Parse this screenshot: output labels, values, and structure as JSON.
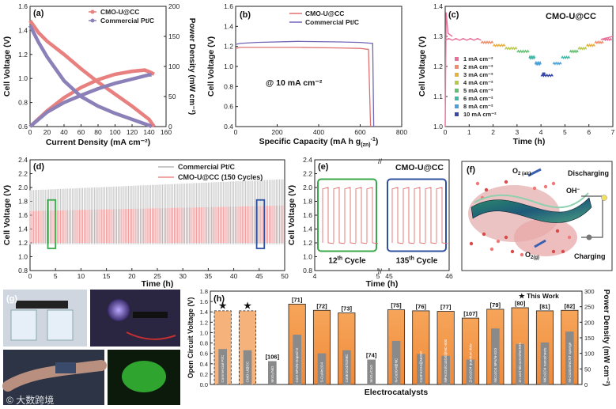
{
  "chart_data": [
    {
      "panel": "(a)",
      "type": "line",
      "xlabel": "Current Density (mA cm⁻²)",
      "ylabel": "Cell Voltage (V)",
      "ylabel2": "Power Density (mW cm⁻²)",
      "xlim": [
        0,
        160
      ],
      "ylim": [
        0.6,
        1.6
      ],
      "y2lim": [
        0,
        200
      ],
      "xticks": [
        "0",
        "20",
        "40",
        "60",
        "80",
        "100",
        "120",
        "140",
        "160"
      ],
      "yticks": [
        "0.6",
        "0.8",
        "1.0",
        "1.2",
        "1.4",
        "1.6"
      ],
      "y2ticks": [
        "0",
        "50",
        "100",
        "150",
        "200"
      ],
      "series": [
        {
          "name": "CMO-U@CC",
          "color": "#e8807f",
          "voltage": [
            [
              0,
              1.48
            ],
            [
              10,
              1.38
            ],
            [
              20,
              1.31
            ],
            [
              40,
              1.2
            ],
            [
              60,
              1.08
            ],
            [
              80,
              0.97
            ],
            [
              100,
              0.87
            ],
            [
              120,
              0.77
            ],
            [
              140,
              0.66
            ],
            [
              146,
              0.6
            ]
          ],
          "power": [
            [
              0,
              0
            ],
            [
              20,
              26
            ],
            [
              40,
              48
            ],
            [
              60,
              65
            ],
            [
              80,
              78
            ],
            [
              100,
              87
            ],
            [
              120,
              92
            ],
            [
              135,
              94
            ],
            [
              142,
              90
            ],
            [
              146,
              87
            ]
          ]
        },
        {
          "name": "Commercial Pt/C",
          "color": "#8b80b8",
          "voltage": [
            [
              0,
              1.44
            ],
            [
              10,
              1.3
            ],
            [
              20,
              1.18
            ],
            [
              40,
              0.98
            ],
            [
              60,
              0.85
            ],
            [
              80,
              0.77
            ],
            [
              100,
              0.71
            ],
            [
              120,
              0.66
            ],
            [
              140,
              0.61
            ],
            [
              143,
              0.6
            ]
          ],
          "power": [
            [
              0,
              0
            ],
            [
              20,
              24
            ],
            [
              40,
              40
            ],
            [
              60,
              52
            ],
            [
              80,
              63
            ],
            [
              100,
              72
            ],
            [
              120,
              79
            ],
            [
              140,
              86
            ],
            [
              143,
              86
            ]
          ]
        }
      ]
    },
    {
      "panel": "(b)",
      "type": "line",
      "xlabel": "Specific Capacity (mA h g",
      "xlabel_sub": "(zn)",
      "xlabel_sup": "-1",
      "xlabel_close": ")",
      "ylabel": "Cell Voltage (V)",
      "annotation": "@ 10 mA cm⁻²",
      "xlim": [
        0,
        800
      ],
      "ylim": [
        0.4,
        1.6
      ],
      "xticks": [
        "0",
        "200",
        "400",
        "600",
        "800"
      ],
      "yticks": [
        "0.4",
        "0.6",
        "0.8",
        "1.0",
        "1.2",
        "1.4",
        "1.6"
      ],
      "series": [
        {
          "name": "CMO-U@CC",
          "color": "#e07070",
          "x": [
            0,
            20,
            100,
            300,
            500,
            600,
            640,
            650
          ],
          "y": [
            1.18,
            1.19,
            1.19,
            1.19,
            1.185,
            1.18,
            1.17,
            0.4
          ]
        },
        {
          "name": "Commercial Pt/C",
          "color": "#7066b8",
          "x": [
            0,
            20,
            100,
            300,
            500,
            600,
            660,
            665
          ],
          "y": [
            1.22,
            1.23,
            1.24,
            1.25,
            1.245,
            1.24,
            1.23,
            0.4
          ]
        }
      ]
    },
    {
      "panel": "(c)",
      "type": "line",
      "title": "CMO-U@CC",
      "xlabel": "Time (h)",
      "ylabel": "Cell Voltage (V)",
      "xlim": [
        0,
        7
      ],
      "ylim": [
        1.0,
        1.4
      ],
      "xticks": [
        "0",
        "1",
        "2",
        "3",
        "4",
        "5",
        "6",
        "7"
      ],
      "yticks": [
        "1.0",
        "1.1",
        "1.2",
        "1.3",
        "1.4"
      ],
      "steps": [
        {
          "label": "1 mA cm⁻²",
          "color": "#ea6f9a",
          "t0": 0,
          "t1": 1.5,
          "v": 1.29
        },
        {
          "label": "2 mA cm⁻²",
          "color": "#f08c6a",
          "t0": 1.5,
          "t1": 2.0,
          "v": 1.28
        },
        {
          "label": "3 mA cm⁻²",
          "color": "#e8b040",
          "t0": 2.0,
          "t1": 2.5,
          "v": 1.27
        },
        {
          "label": "4 mA cm⁻²",
          "color": "#b8c848",
          "t0": 2.5,
          "t1": 3.0,
          "v": 1.26
        },
        {
          "label": "5 mA cm⁻²",
          "color": "#60c070",
          "t0": 3.0,
          "t1": 3.5,
          "v": 1.25
        },
        {
          "label": "6 mA cm⁻²",
          "color": "#40b8a8",
          "t0": 3.5,
          "t1": 3.75,
          "v": 1.23
        },
        {
          "label": "8 mA cm⁻²",
          "color": "#4aa0d8",
          "t0": 3.75,
          "t1": 4.0,
          "v": 1.21
        },
        {
          "label": "10 mA cm⁻²",
          "color": "#3848a8",
          "t0": 4.0,
          "t1": 4.5,
          "v": 1.17
        }
      ]
    },
    {
      "panel": "(d)",
      "type": "line",
      "xlabel": "Time (h)",
      "ylabel": "Cell Voltage (V)",
      "xlim": [
        0,
        50
      ],
      "ylim": [
        0.8,
        2.4
      ],
      "xticks": [
        "0",
        "5",
        "10",
        "15",
        "20",
        "25",
        "30",
        "35",
        "40",
        "45",
        "50"
      ],
      "yticks": [
        "0.8",
        "1.0",
        "1.2",
        "1.4",
        "1.6",
        "1.8",
        "2.0",
        "2.2",
        "2.4"
      ],
      "series": [
        {
          "name": "Commercial Pt/C",
          "color": "#c8c8c8",
          "discharge_v": 1.18,
          "charge_v_start": 1.96,
          "charge_v_end": 2.12,
          "t_end": 50
        },
        {
          "name": "CMO-U@CC (150 Cycles)",
          "color": "#f0a0a0",
          "discharge_v": 1.2,
          "charge_v_start": 1.66,
          "charge_v_end": 1.74,
          "t_end": 50
        }
      ],
      "highlights": [
        {
          "t0": 3.5,
          "t1": 5.0,
          "color": "#3aa84a"
        },
        {
          "t0": 44.5,
          "t1": 46.0,
          "color": "#3050a0"
        }
      ]
    },
    {
      "panel": "(e)",
      "type": "line",
      "title": "CMO-U@CC",
      "xlabel": "Time (h)",
      "ylabel": "Cell Voltage (V)",
      "ylim": [
        0.8,
        2.4
      ],
      "xticks": [
        "4",
        "5",
        "45",
        "46"
      ],
      "yticks": [
        "0.8",
        "1.0",
        "1.2",
        "1.4",
        "1.6",
        "1.8",
        "2.0",
        "2.2",
        "2.4"
      ],
      "insets": [
        {
          "label": "12",
          "sup": "th",
          "suffix": " Cycle",
          "color": "#3aa84a"
        },
        {
          "label": "135",
          "sup": "th",
          "suffix": " Cycle",
          "color": "#3050a0"
        }
      ]
    },
    {
      "panel": "(h)",
      "type": "bar",
      "xlabel": "Electrocatalysts",
      "ylabel": "Open Circuit Voltage (V)",
      "ylabel2": "Power Density (mW cm⁻²)",
      "legend": "★ This Work",
      "ylim": [
        0.0,
        1.8
      ],
      "y2lim": [
        0,
        300
      ],
      "yticks": [
        "0.0",
        "0.2",
        "0.4",
        "0.6",
        "0.8",
        "1.0",
        "1.2",
        "1.4",
        "1.6",
        "1.8"
      ],
      "y2ticks": [
        "0",
        "50",
        "100",
        "150",
        "200",
        "250",
        "300"
      ],
      "categories": [
        {
          "name": "Commercial Pt/C",
          "ref": "★",
          "ocv": 1.42,
          "pd": 114,
          "this_work": true
        },
        {
          "name": "CMO-U@CC",
          "ref": "★",
          "ocv": 1.42,
          "pd": 110,
          "this_work": true
        },
        {
          "name": "MnO₂/NiO",
          "ref": "[106]",
          "ocv": null,
          "pd": 75,
          "this_work": false
        },
        {
          "name": "CoO NPs/N-Doped G",
          "ref": "[71]",
          "ocv": 1.55,
          "pd": 160,
          "this_work": false
        },
        {
          "name": "S-CuMn2O4",
          "ref": "[72]",
          "ocv": 1.43,
          "pd": 100,
          "this_work": false
        },
        {
          "name": "CoMn2O4/SOMC",
          "ref": "[73]",
          "ocv": 1.38,
          "pd": 110,
          "this_work": false
        },
        {
          "name": "MnO₂/CoO",
          "ref": "[74]",
          "ocv": null,
          "pd": 80,
          "this_work": false
        },
        {
          "name": "N-Co3O4@NC",
          "ref": "[75]",
          "ocv": 1.44,
          "pd": 140,
          "this_work": false
        },
        {
          "name": "Co3Fe2O4@NCNT",
          "ref": "[76]",
          "ocv": 1.42,
          "pd": 98,
          "this_work": false
        },
        {
          "name": "NiFe2O4/Co3O4@NC-600",
          "ref": "[77]",
          "ocv": 1.41,
          "pd": 92,
          "this_work": false
        },
        {
          "name": "ZnCo2O4 quantum dots",
          "ref": "[107]",
          "ocv": 1.28,
          "pd": 80,
          "this_work": false
        },
        {
          "name": "NiCo2O4 NPs/N-rGO",
          "ref": "[79]",
          "ocv": 1.45,
          "pd": 180,
          "this_work": false
        },
        {
          "name": "Zn and NiCo2O4/NCNTs",
          "ref": "[80]",
          "ocv": 1.48,
          "pd": 130,
          "this_work": false
        },
        {
          "name": "NiCo2O4 nanosheets",
          "ref": "[81]",
          "ocv": 1.42,
          "pd": 135,
          "this_work": false
        },
        {
          "name": "Ni-Co3O4/NCNT sponge",
          "ref": "[82]",
          "ocv": 1.43,
          "pd": 170,
          "this_work": false
        }
      ]
    }
  ],
  "diagram_f": {
    "panel": "(f)",
    "o2_air": "O",
    "o2_air_sub": "2 (air)",
    "oh": "OH",
    "oh_sup": "−",
    "o2_g": "O",
    "o2_g_sub": "2(g)",
    "discharging": "Discharging",
    "charging": "Charging"
  },
  "photos_g": {
    "panel": "(g)",
    "watermark": "大数跨境"
  },
  "legend_a": [
    "CMO-U@CC",
    "Commercial Pt/C"
  ],
  "legend_b": [
    "CMO-U@CC",
    "Commercial Pt/C"
  ],
  "legend_d": [
    "Commercial Pt/C",
    "CMO-U@CC (150 Cycles)"
  ]
}
